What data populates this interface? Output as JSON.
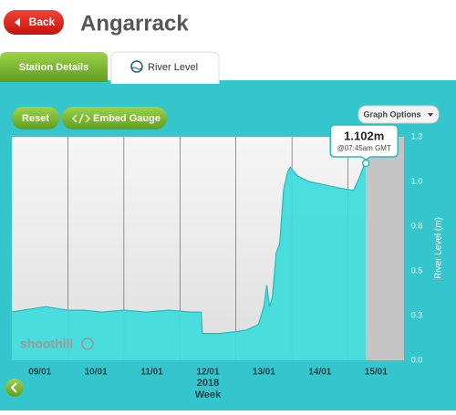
{
  "header": {
    "back": "Back",
    "title": "Angarrack"
  },
  "tabs": [
    "Station Details",
    "River Level"
  ],
  "buttons": {
    "reset": "Reset",
    "embed": "Embed Gauge",
    "options": "Graph Options"
  },
  "chart_data": {
    "type": "area",
    "ylabel": "River Level (m)",
    "xlabel": "Week",
    "xlabel_year": "2018",
    "color": "#40dcdc",
    "x": [
      9.0,
      9.2,
      9.4,
      9.6,
      9.8,
      10.0,
      10.3,
      10.6,
      11.0,
      11.4,
      11.8,
      12.2,
      12.38,
      12.4,
      12.7,
      13.0,
      13.2,
      13.4,
      13.5,
      13.55,
      13.6,
      13.65,
      13.72,
      13.78,
      13.85,
      13.92,
      13.97,
      14.1,
      14.3,
      14.6,
      14.9,
      15.1,
      15.2,
      15.3,
      15.32
    ],
    "values": [
      0.27,
      0.28,
      0.29,
      0.3,
      0.29,
      0.28,
      0.28,
      0.27,
      0.28,
      0.27,
      0.28,
      0.27,
      0.27,
      0.15,
      0.15,
      0.16,
      0.17,
      0.2,
      0.3,
      0.42,
      0.3,
      0.35,
      0.6,
      0.65,
      0.95,
      1.05,
      1.08,
      1.03,
      1.0,
      0.98,
      0.96,
      0.95,
      1.02,
      1.1,
      1.102
    ],
    "xlim": [
      9,
      16
    ],
    "ylim": [
      0,
      1.25
    ],
    "xticks": [
      {
        "value": 9.5,
        "label": "09/01"
      },
      {
        "value": 10.5,
        "label": "10/01"
      },
      {
        "value": 11.5,
        "label": "11/01"
      },
      {
        "value": 12.5,
        "label": "12/01"
      },
      {
        "value": 13.5,
        "label": "13/01"
      },
      {
        "value": 14.5,
        "label": "14/01"
      },
      {
        "value": 15.5,
        "label": "15/01"
      }
    ],
    "xgrid": [
      10,
      11,
      12,
      13,
      14,
      15
    ],
    "yticks": [
      {
        "value": 0,
        "label": "0.0"
      },
      {
        "value": 0.25,
        "label": "0.3"
      },
      0.5,
      {
        "value": 0.75,
        "label": "0.8"
      },
      {
        "value": 1,
        "label": "1.0"
      },
      {
        "value": 1.25,
        "label": "1.3"
      }
    ],
    "latest": {
      "x": 15.32,
      "value": 1.102,
      "label": "1.102m",
      "time": "@07:45am GMT"
    }
  }
}
